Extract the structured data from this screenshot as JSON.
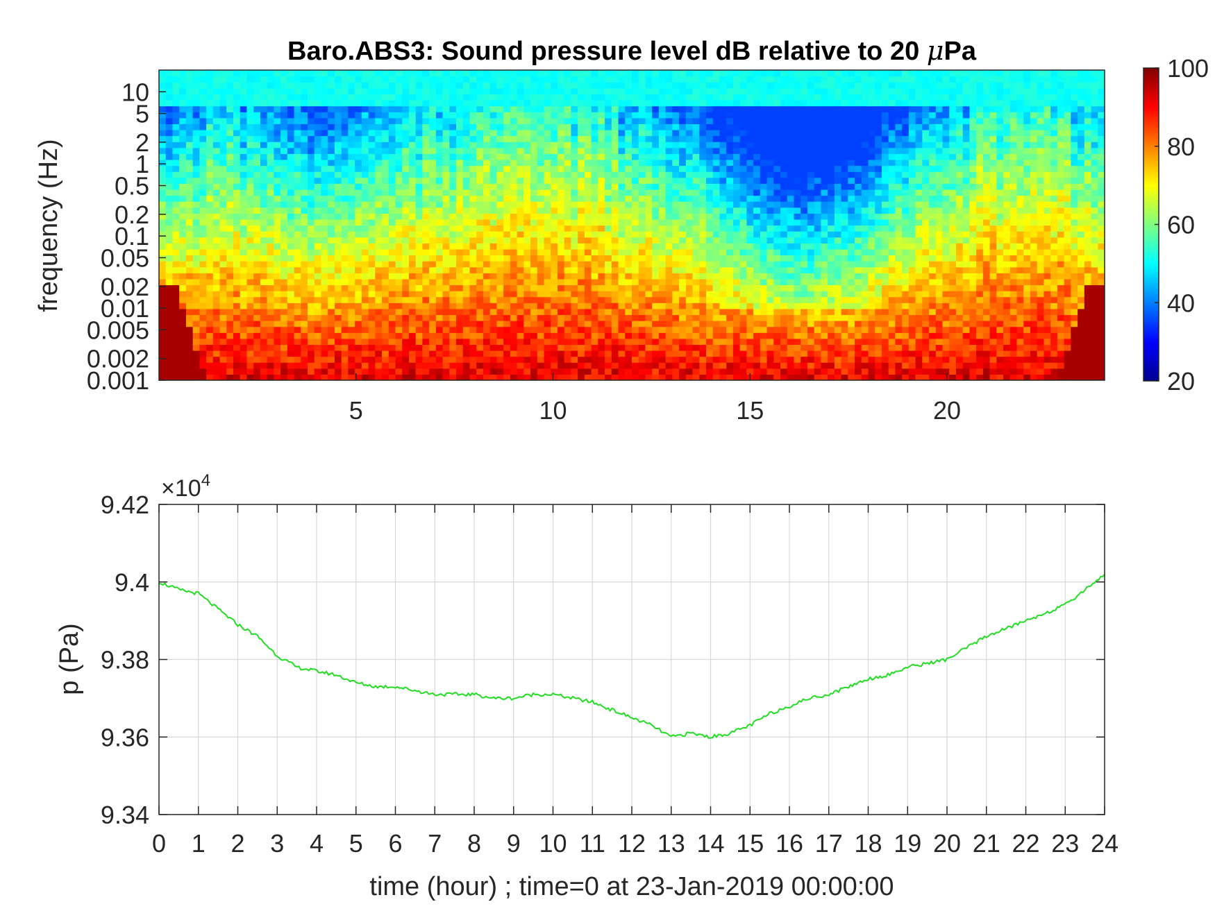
{
  "chart_data": [
    {
      "type": "heatmap",
      "title": "Baro.ABS3: Sound pressure level dB relative to 20 μPa",
      "title_parts": {
        "before": "Baro.ABS3: Sound pressure level dB relative to 20 ",
        "mu": "μ",
        "after": "Pa"
      },
      "xlabel": "",
      "ylabel": "frequency (Hz)",
      "xlim": [
        0,
        24
      ],
      "x_ticks": [
        5,
        10,
        15,
        20
      ],
      "y_scale": "log",
      "ylim": [
        0.001,
        20
      ],
      "y_ticks": [
        0.001,
        0.002,
        0.005,
        0.01,
        0.02,
        0.05,
        0.1,
        0.2,
        0.5,
        1,
        2,
        5,
        10
      ],
      "y_tick_labels": [
        "0.001",
        "0.002",
        "0.005",
        "0.01",
        "0.02",
        "0.05",
        "0.1",
        "0.2",
        "0.5",
        "1",
        "2",
        "5",
        "10"
      ],
      "colorbar": {
        "colormap": "jet",
        "min": 20,
        "max": 100,
        "ticks": [
          20,
          40,
          60,
          80,
          100
        ]
      },
      "description_of_levels": {
        "above_5Hz": "about 50 dB (cyan) throughout",
        "low_frequency_band": "about 85-95 dB (red) below 0.005 Hz",
        "active_periods_hours": [
          [
            5,
            13
          ],
          [
            19,
            24
          ]
        ],
        "quiet_period_hours": [
          14,
          18.5
        ]
      },
      "grid": false
    },
    {
      "type": "line",
      "title": "",
      "xlabel": "time (hour) ; time=0 at 23-Jan-2019 00:00:00",
      "ylabel": "p (Pa)",
      "y_multiplier": {
        "base": "×10",
        "exponent": "4"
      },
      "xlim": [
        0,
        24
      ],
      "x_ticks": [
        0,
        1,
        2,
        3,
        4,
        5,
        6,
        7,
        8,
        9,
        10,
        11,
        12,
        13,
        14,
        15,
        16,
        17,
        18,
        19,
        20,
        21,
        22,
        23,
        24
      ],
      "ylim": [
        9.34,
        9.42
      ],
      "y_ticks": [
        9.34,
        9.36,
        9.38,
        9.4,
        9.42
      ],
      "y_tick_labels": [
        "9.34",
        "9.36",
        "9.38",
        "9.4",
        "9.42"
      ],
      "grid": true,
      "line_color": "#22dd22",
      "series": [
        {
          "x": [
            0,
            0.5,
            1,
            1.5,
            2,
            2.5,
            3,
            3.5,
            4,
            4.5,
            5,
            5.5,
            6,
            6.5,
            7,
            7.5,
            8,
            8.5,
            9,
            9.5,
            10,
            10.5,
            11,
            11.5,
            12,
            12.5,
            13,
            13.5,
            14,
            14.5,
            15,
            15.5,
            16,
            16.5,
            17,
            17.5,
            18,
            18.5,
            19,
            19.5,
            20,
            20.5,
            21,
            21.5,
            22,
            22.5,
            23,
            23.5,
            24
          ],
          "values": [
            9.4,
            9.398,
            9.397,
            9.393,
            9.389,
            9.386,
            9.381,
            9.378,
            9.377,
            9.376,
            9.374,
            9.373,
            9.373,
            9.372,
            9.371,
            9.371,
            9.371,
            9.37,
            9.37,
            9.371,
            9.371,
            9.37,
            9.369,
            9.367,
            9.365,
            9.363,
            9.36,
            9.361,
            9.36,
            9.361,
            9.363,
            9.366,
            9.368,
            9.37,
            9.371,
            9.373,
            9.375,
            9.376,
            9.378,
            9.379,
            9.38,
            9.383,
            9.386,
            9.388,
            9.39,
            9.392,
            9.394,
            9.398,
            9.402
          ]
        }
      ]
    }
  ]
}
